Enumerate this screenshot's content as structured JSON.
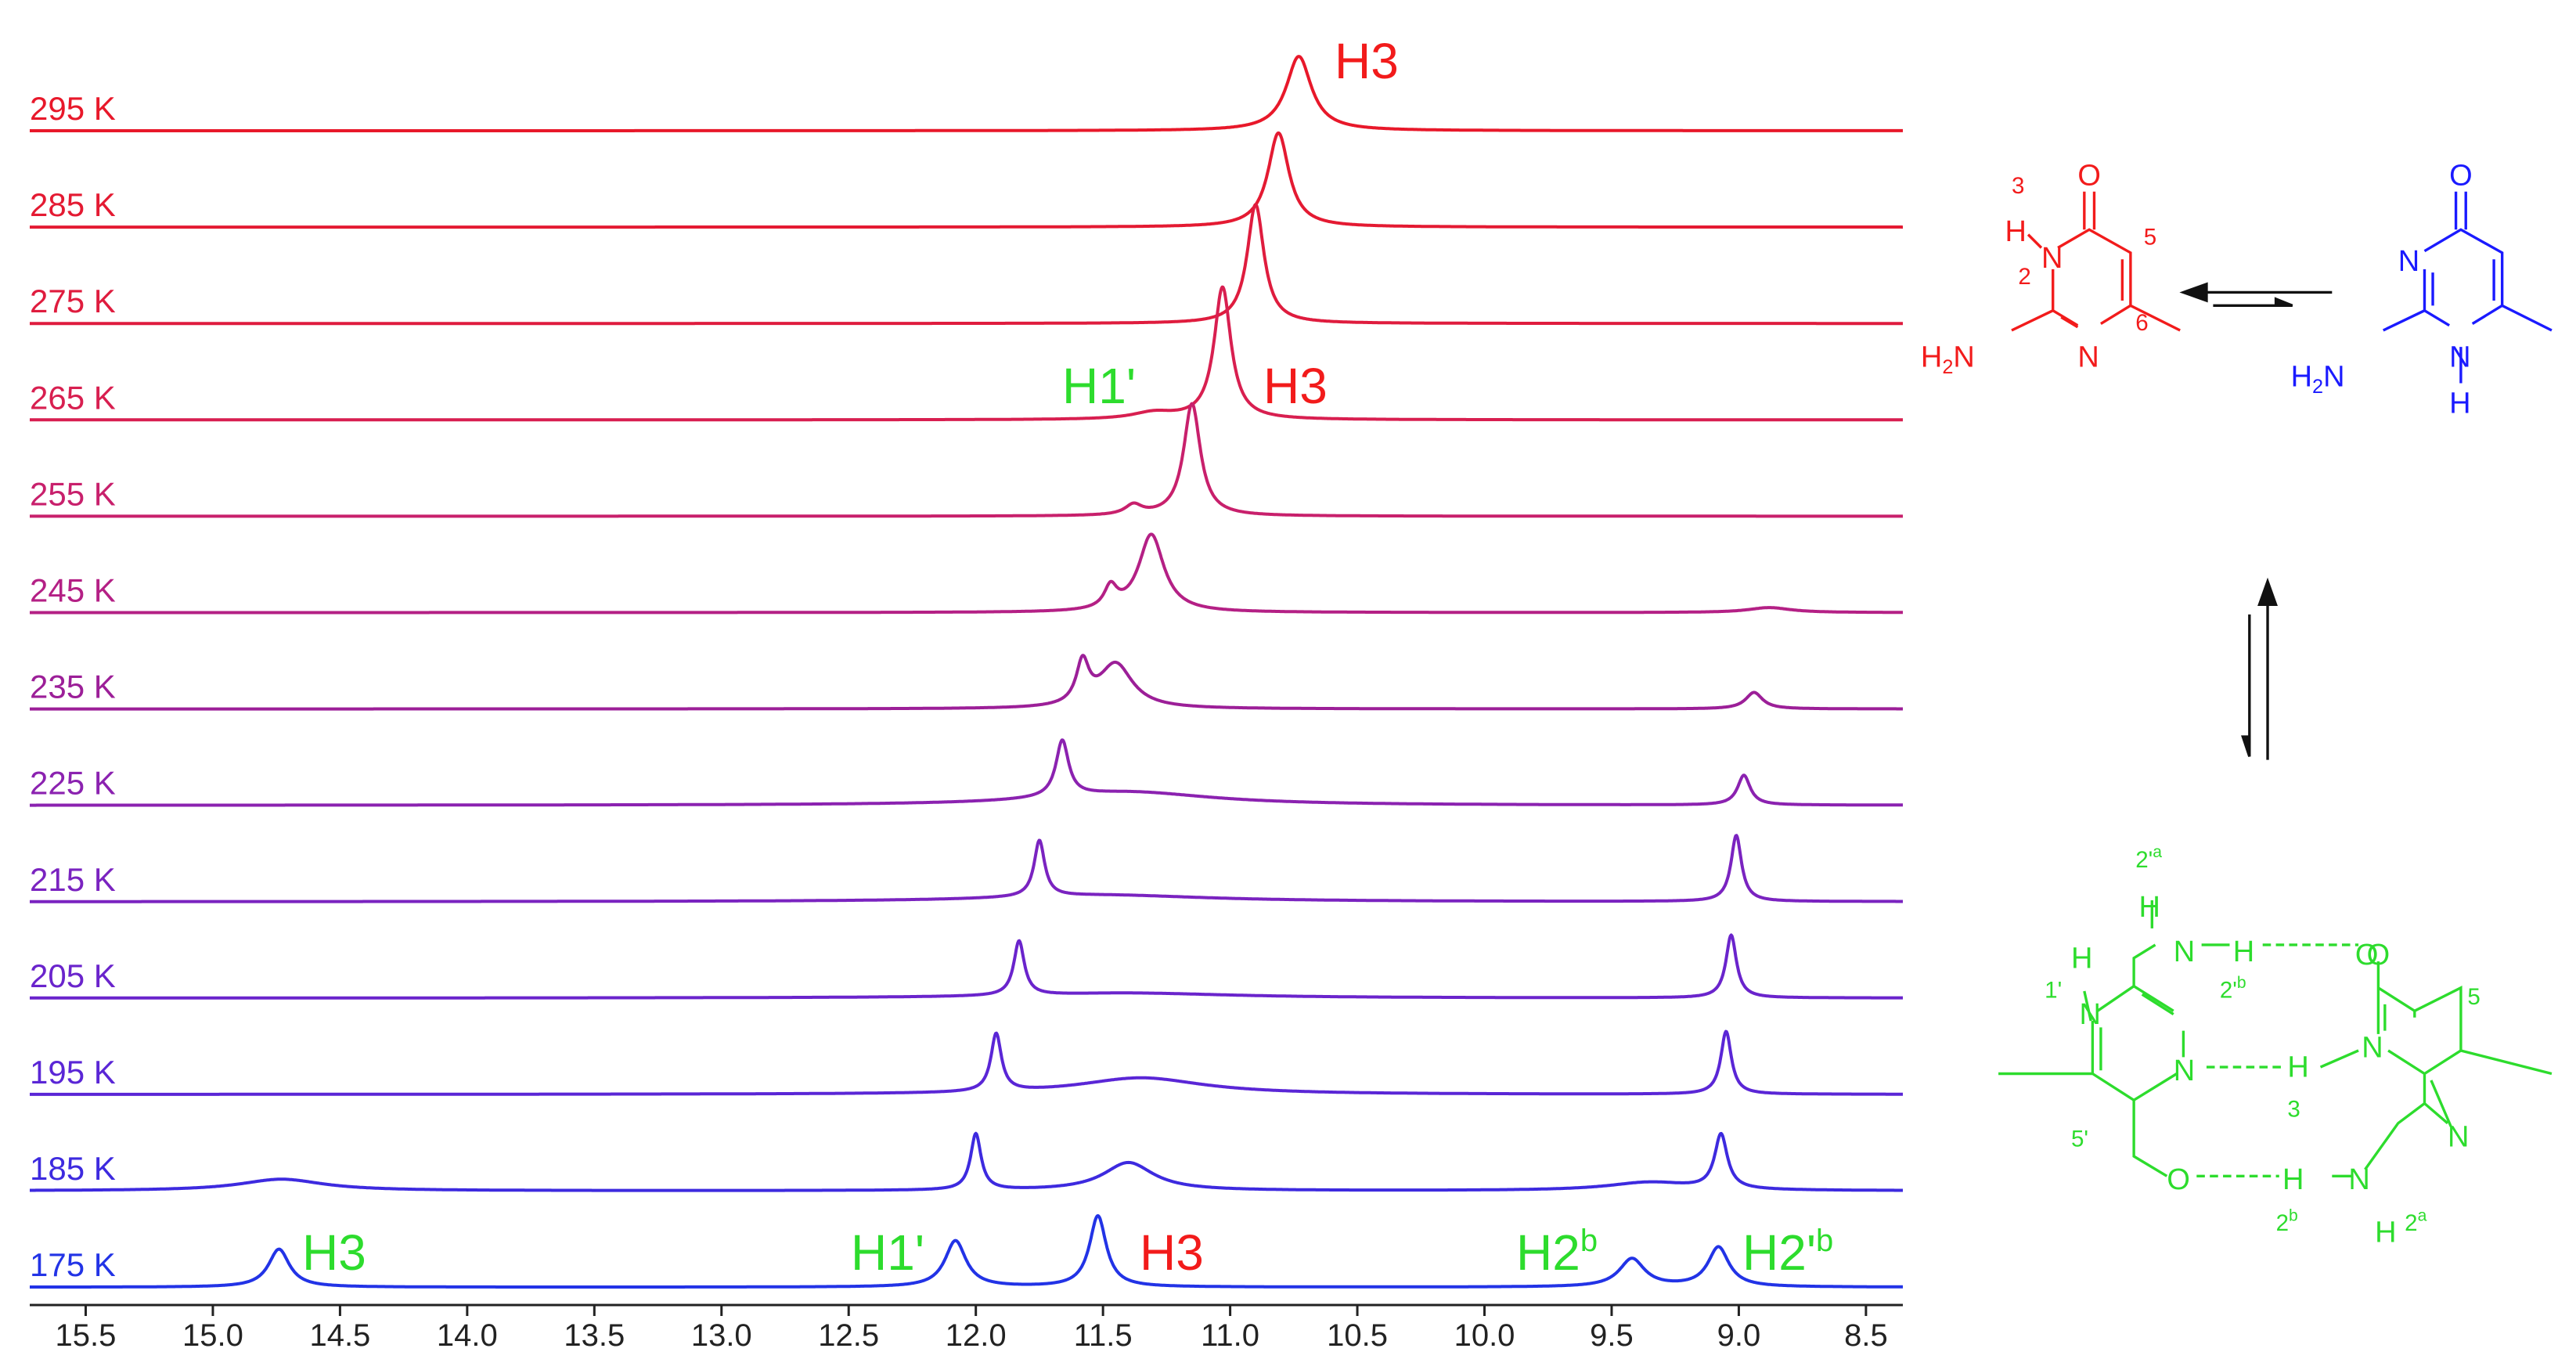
{
  "chart_data": {
    "type": "spectrum",
    "xlim": [
      15.72,
      8.355
    ],
    "xticks": [
      15.5,
      {
        "value": 15,
        "label": "15.0"
      },
      14.5,
      {
        "value": 14,
        "label": "14.0"
      },
      13.5,
      {
        "value": 13,
        "label": "13.0"
      },
      12.5,
      {
        "value": 12,
        "label": "12.0"
      },
      11.5,
      {
        "value": 11,
        "label": "11.0"
      },
      10.5,
      {
        "value": 10,
        "label": "10.0"
      },
      9.5,
      {
        "value": 9,
        "label": "9.0"
      },
      8.5
    ],
    "series": [
      {
        "name": "295 K",
        "color": "#e8182a",
        "x": [
          10.73
        ],
        "values": [
          45
        ],
        "widths": [
          0.06
        ]
      },
      {
        "name": "285 K",
        "color": "#e41a32",
        "x": [
          10.81
        ],
        "values": [
          57
        ],
        "widths": [
          0.05
        ]
      },
      {
        "name": "275 K",
        "color": "#df1c3e",
        "x": [
          10.9
        ],
        "values": [
          72
        ],
        "widths": [
          0.04
        ]
      },
      {
        "name": "265 K",
        "color": "#d81f50",
        "x": [
          11.03,
          11.3
        ],
        "values": [
          80,
          4
        ],
        "widths": [
          0.04,
          0.1
        ]
      },
      {
        "name": "255 K",
        "color": "#c8206c",
        "x": [
          11.15,
          11.38
        ],
        "values": [
          68,
          6
        ],
        "widths": [
          0.04,
          0.04
        ]
      },
      {
        "name": "245 K",
        "color": "#b42085",
        "x": [
          11.31,
          11.47,
          8.88
        ],
        "values": [
          47,
          13,
          3
        ],
        "widths": [
          0.06,
          0.03,
          0.1
        ]
      },
      {
        "name": "235 K",
        "color": "#9c1f98",
        "x": [
          11.45,
          11.58,
          8.94
        ],
        "values": [
          27,
          25,
          10
        ],
        "widths": [
          0.08,
          0.03,
          0.04
        ]
      },
      {
        "name": "225 K",
        "color": "#8b22b0",
        "x": [
          11.66,
          11.4,
          8.98
        ],
        "values": [
          34,
          8,
          18
        ],
        "widths": [
          0.03,
          0.4,
          0.03
        ]
      },
      {
        "name": "215 K",
        "color": "#7a23c0",
        "x": [
          11.75,
          11.5,
          9.01
        ],
        "values": [
          34,
          4,
          40
        ],
        "widths": [
          0.025,
          0.5,
          0.025
        ]
      },
      {
        "name": "205 K",
        "color": "#6a24cc",
        "x": [
          11.83,
          11.4,
          9.03
        ],
        "values": [
          33,
          3,
          38
        ],
        "widths": [
          0.025,
          0.5,
          0.025
        ]
      },
      {
        "name": "195 K",
        "color": "#5a26d6",
        "x": [
          11.92,
          11.35,
          9.05
        ],
        "values": [
          35,
          10,
          38
        ],
        "widths": [
          0.025,
          0.3,
          0.025
        ]
      },
      {
        "name": "185 K",
        "color": "#3d2adf",
        "x": [
          12.0,
          11.4,
          14.73,
          9.35,
          9.07
        ],
        "values": [
          34,
          17,
          7,
          5,
          33
        ],
        "widths": [
          0.025,
          0.12,
          0.2,
          0.2,
          0.03
        ]
      },
      {
        "name": "175 K",
        "color": "#2233e6",
        "x": [
          14.74,
          12.08,
          11.52,
          9.42,
          9.08
        ],
        "values": [
          23,
          28,
          43,
          17,
          24
        ],
        "widths": [
          0.05,
          0.05,
          0.04,
          0.06,
          0.05
        ]
      }
    ],
    "annotations": [
      {
        "text": "H3",
        "color": "#f21b1b"
      },
      {
        "text": "H1'",
        "color": "#2ddc2d"
      },
      {
        "text": "H3",
        "color": "#f21b1b"
      },
      {
        "text": "H3",
        "color": "#2ddc2d"
      },
      {
        "text": "H1'",
        "color": "#2ddc2d"
      },
      {
        "text": "H3",
        "color": "#f21b1b"
      },
      {
        "text": "H2",
        "sup": "b",
        "color": "#2ddc2d"
      },
      {
        "text": "H2'",
        "sup": "b",
        "color": "#2ddc2d"
      }
    ]
  },
  "structures": {
    "red": [
      "O",
      "3",
      "H",
      "N",
      "5",
      "2",
      "H",
      "2",
      "N",
      "N",
      "6"
    ],
    "blue": [
      "O",
      "N",
      "H",
      "2",
      "N",
      "N",
      "H"
    ],
    "green": [
      "2'",
      "a",
      "H",
      "N",
      "H",
      "O",
      "2'",
      "b",
      "1'",
      "H",
      "N",
      "N",
      "H",
      "3",
      "N",
      "O",
      "5",
      "N",
      "O",
      "H",
      "N",
      "2",
      "b",
      "H",
      "2",
      "a",
      "5'"
    ]
  }
}
